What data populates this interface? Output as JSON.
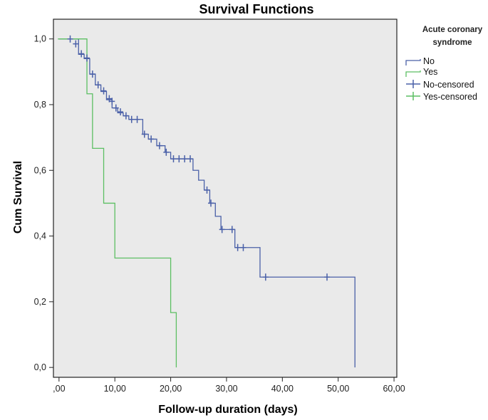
{
  "chart_data": {
    "type": "line",
    "subtype": "kaplan-meier step",
    "title": "Survival Functions",
    "xlabel": "Follow-up duration (days)",
    "ylabel": "Cum Survival",
    "xlim": [
      -1,
      60.5
    ],
    "ylim": [
      -0.03,
      1.06
    ],
    "xticks": [
      0,
      10,
      20,
      30,
      40,
      50,
      60
    ],
    "xtick_labels": [
      ",00",
      "10,00",
      "20,00",
      "30,00",
      "40,00",
      "50,00",
      "60,00"
    ],
    "yticks": [
      0,
      0.2,
      0.4,
      0.6,
      0.8,
      1.0
    ],
    "ytick_labels": [
      "0,0",
      "0,2",
      "0,4",
      "0,6",
      "0,8",
      "1,0"
    ],
    "legend": {
      "title_line1": "Acute coronary",
      "title_line2": "syndrome",
      "position": "right",
      "entries": [
        "No",
        "Yes",
        "No-censored",
        "Yes-censored"
      ]
    },
    "series": [
      {
        "name": "No",
        "color": "#4a60a8",
        "steps": [
          [
            0,
            1.0
          ],
          [
            3.5,
            0.953
          ],
          [
            4.5,
            0.94
          ],
          [
            5.5,
            0.893
          ],
          [
            6.5,
            0.86
          ],
          [
            7.5,
            0.84
          ],
          [
            8.5,
            0.815
          ],
          [
            9.5,
            0.79
          ],
          [
            10.5,
            0.775
          ],
          [
            11.5,
            0.766
          ],
          [
            12.5,
            0.755
          ],
          [
            15,
            0.71
          ],
          [
            16,
            0.695
          ],
          [
            17.5,
            0.675
          ],
          [
            19,
            0.655
          ],
          [
            20,
            0.635
          ],
          [
            24,
            0.6
          ],
          [
            25,
            0.57
          ],
          [
            26,
            0.54
          ],
          [
            27,
            0.5
          ],
          [
            28,
            0.46
          ],
          [
            29,
            0.42
          ],
          [
            31.5,
            0.365
          ],
          [
            36,
            0.275
          ],
          [
            53,
            0.0
          ]
        ],
        "end_x": 53
      },
      {
        "name": "Yes",
        "color": "#5cbf63",
        "steps": [
          [
            -0.2,
            1.0
          ],
          [
            5,
            0.833
          ],
          [
            6,
            0.667
          ],
          [
            8,
            0.5
          ],
          [
            10,
            0.333
          ],
          [
            20,
            0.167
          ],
          [
            21,
            0.0
          ]
        ],
        "end_x": 21
      }
    ],
    "censored": [
      {
        "series": "No",
        "color": "#4a60a8",
        "points": [
          [
            2,
            1.0
          ],
          [
            3,
            0.985
          ],
          [
            4,
            0.955
          ],
          [
            5,
            0.942
          ],
          [
            6,
            0.893
          ],
          [
            7,
            0.86
          ],
          [
            8,
            0.842
          ],
          [
            9,
            0.818
          ],
          [
            9.5,
            0.81
          ],
          [
            10.2,
            0.79
          ],
          [
            11,
            0.778
          ],
          [
            12,
            0.766
          ],
          [
            13,
            0.755
          ],
          [
            14,
            0.755
          ],
          [
            15.3,
            0.71
          ],
          [
            16.5,
            0.695
          ],
          [
            18,
            0.675
          ],
          [
            19.2,
            0.655
          ],
          [
            20.5,
            0.635
          ],
          [
            21.5,
            0.635
          ],
          [
            22.5,
            0.635
          ],
          [
            23.5,
            0.635
          ],
          [
            26.5,
            0.54
          ],
          [
            27.2,
            0.5
          ],
          [
            29.2,
            0.42
          ],
          [
            31,
            0.42
          ],
          [
            32,
            0.365
          ],
          [
            33,
            0.365
          ],
          [
            37,
            0.275
          ],
          [
            48,
            0.275
          ]
        ]
      },
      {
        "series": "Yes",
        "color": "#5cbf63",
        "points": []
      }
    ]
  }
}
